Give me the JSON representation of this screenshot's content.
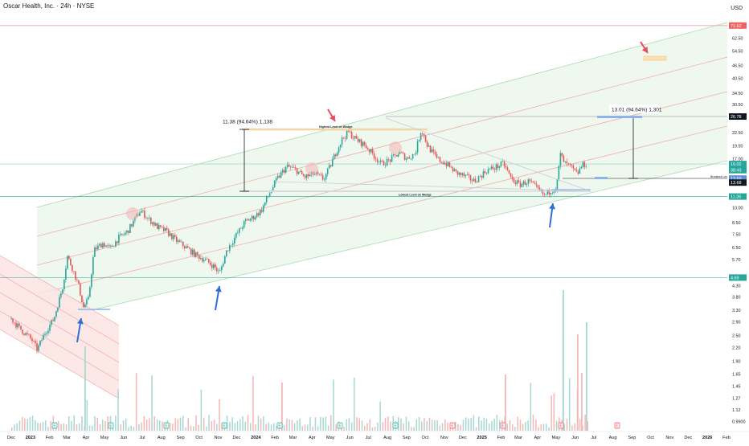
{
  "header": {
    "title": "Oscar Health, Inc. · 24h · NYSE",
    "currency": "USD"
  },
  "colors": {
    "up": "#26a69a",
    "down": "#ef5350",
    "channel_fill": "#e8f5e9",
    "red_channel_fill": "#fde4e4",
    "arrow_blue": "#2f6fd6",
    "arrow_red": "#e84a5f",
    "wedge_line": "#f2d4a6"
  },
  "chart_data": {
    "type": "candlestick",
    "title": "Oscar Health, Inc. · 24h · NYSE",
    "y_scale": "log",
    "y_ticks": [
      "62.50",
      "54.50",
      "46.50",
      "40.50",
      "34.50",
      "30.50",
      "26.50",
      "22.50",
      "19.50",
      "17.00",
      "10.00",
      "8.50",
      "7.50",
      "6.50",
      "5.70",
      "4.30",
      "3.80",
      "3.30",
      "2.90",
      "2.50",
      "2.20",
      "1.90",
      "1.65",
      "1.45",
      "1.27",
      "1.12",
      "0.9900"
    ],
    "y_tick_values": [
      62.5,
      54.5,
      46.5,
      40.5,
      34.5,
      30.5,
      26.5,
      22.5,
      19.5,
      17.0,
      10.0,
      8.5,
      7.5,
      6.5,
      5.7,
      4.3,
      3.8,
      3.3,
      2.9,
      2.5,
      2.2,
      1.9,
      1.65,
      1.45,
      1.27,
      1.12,
      0.99
    ],
    "price_badges": [
      {
        "label": "71.62",
        "value": 71.62,
        "color": "#f06262"
      },
      {
        "label": "26.78",
        "value": 26.78,
        "color": "#131722"
      },
      {
        "label": "16.02",
        "value": 16.02,
        "color": "#26a69a"
      },
      {
        "label": "38:43",
        "value": 15.0,
        "color": "#26a69a"
      },
      {
        "label": "13.69",
        "value": 13.69,
        "color": "#5b8fd6"
      },
      {
        "label": "13.68",
        "value": 13.1,
        "color": "#131722"
      },
      {
        "label": "11.26",
        "value": 11.26,
        "color": "#26a69a"
      },
      {
        "label": "4.69",
        "value": 4.69,
        "color": "#26a69a"
      }
    ],
    "x_ticks": [
      "Dec",
      "2023",
      "Feb",
      "Mar",
      "Apr",
      "May",
      "Jun",
      "Jul",
      "Aug",
      "Sep",
      "Oct",
      "Nov",
      "Dec",
      "2024",
      "Feb",
      "Mar",
      "Apr",
      "May",
      "Jun",
      "Jul",
      "Aug",
      "Sep",
      "Oct",
      "Nov",
      "Dec",
      "2025",
      "Feb",
      "Mar",
      "Apr",
      "May",
      "Jun",
      "Jul",
      "Aug",
      "Sep",
      "Oct",
      "Nov",
      "Dec",
      "2026",
      "Feb"
    ],
    "x_bold": [
      "2023",
      "2024",
      "2025",
      "2026"
    ],
    "x_start": "2022-12-01",
    "x_end": "2026-02-01",
    "price_path": [
      [
        "2022-12-01",
        3.0
      ],
      [
        "2022-12-15",
        2.7
      ],
      [
        "2023-01-03",
        2.4
      ],
      [
        "2023-01-12",
        2.15
      ],
      [
        "2023-01-25",
        2.6
      ],
      [
        "2023-02-08",
        3.0
      ],
      [
        "2023-02-22",
        4.2
      ],
      [
        "2023-03-02",
        5.9
      ],
      [
        "2023-03-10",
        5.2
      ],
      [
        "2023-03-20",
        4.3
      ],
      [
        "2023-03-28",
        3.4
      ],
      [
        "2023-04-05",
        3.7
      ],
      [
        "2023-04-14",
        6.3
      ],
      [
        "2023-04-28",
        6.8
      ],
      [
        "2023-05-10",
        6.4
      ],
      [
        "2023-05-24",
        7.2
      ],
      [
        "2023-06-07",
        7.7
      ],
      [
        "2023-06-20",
        8.9
      ],
      [
        "2023-06-28",
        9.7
      ],
      [
        "2023-07-12",
        8.8
      ],
      [
        "2023-07-26",
        8.1
      ],
      [
        "2023-08-10",
        7.7
      ],
      [
        "2023-08-25",
        7.0
      ],
      [
        "2023-09-10",
        6.5
      ],
      [
        "2023-09-25",
        6.0
      ],
      [
        "2023-10-10",
        5.7
      ],
      [
        "2023-10-25",
        5.3
      ],
      [
        "2023-11-03",
        4.9
      ],
      [
        "2023-11-15",
        6.3
      ],
      [
        "2023-11-30",
        7.4
      ],
      [
        "2023-12-15",
        8.6
      ],
      [
        "2023-12-28",
        9.0
      ],
      [
        "2024-01-10",
        9.7
      ],
      [
        "2024-01-22",
        11.5
      ],
      [
        "2024-02-05",
        13.7
      ],
      [
        "2024-02-20",
        15.6
      ],
      [
        "2024-03-05",
        15.1
      ],
      [
        "2024-03-20",
        13.9
      ],
      [
        "2024-04-05",
        14.4
      ],
      [
        "2024-04-20",
        13.6
      ],
      [
        "2024-05-01",
        15.8
      ],
      [
        "2024-05-10",
        18.3
      ],
      [
        "2024-05-20",
        21.0
      ],
      [
        "2024-05-30",
        22.6
      ],
      [
        "2024-06-12",
        20.8
      ],
      [
        "2024-06-25",
        19.7
      ],
      [
        "2024-07-08",
        17.9
      ],
      [
        "2024-07-22",
        16.0
      ],
      [
        "2024-08-05",
        16.7
      ],
      [
        "2024-08-20",
        18.1
      ],
      [
        "2024-09-02",
        17.0
      ],
      [
        "2024-09-15",
        18.0
      ],
      [
        "2024-09-25",
        23.4
      ],
      [
        "2024-10-05",
        19.5
      ],
      [
        "2024-10-20",
        17.0
      ],
      [
        "2024-11-05",
        16.0
      ],
      [
        "2024-11-20",
        14.6
      ],
      [
        "2024-12-05",
        14.0
      ],
      [
        "2024-12-20",
        13.3
      ],
      [
        "2025-01-08",
        14.9
      ],
      [
        "2025-01-22",
        15.4
      ],
      [
        "2025-02-05",
        16.1
      ],
      [
        "2025-02-18",
        13.6
      ],
      [
        "2025-03-03",
        12.8
      ],
      [
        "2025-03-18",
        13.3
      ],
      [
        "2025-04-01",
        12.2
      ],
      [
        "2025-04-12",
        11.4
      ],
      [
        "2025-04-22",
        12.0
      ],
      [
        "2025-05-02",
        12.5
      ],
      [
        "2025-05-08",
        17.8
      ],
      [
        "2025-05-15",
        16.1
      ],
      [
        "2025-05-25",
        15.5
      ],
      [
        "2025-06-04",
        14.3
      ],
      [
        "2025-06-12",
        15.8
      ],
      [
        "2025-06-20",
        16.0
      ]
    ],
    "annotations": [
      {
        "text": "11.38 (94.64%) 1,138",
        "type": "measure"
      },
      {
        "text": "13.01 (94.64%) 1,301",
        "type": "measure"
      },
      {
        "text": "Highest Level on Wedge",
        "type": "label"
      },
      {
        "text": "Lowest Level on Wedge",
        "type": "label"
      },
      {
        "text": "Breakout Level",
        "type": "label"
      }
    ],
    "grid": false,
    "legend": "none"
  }
}
